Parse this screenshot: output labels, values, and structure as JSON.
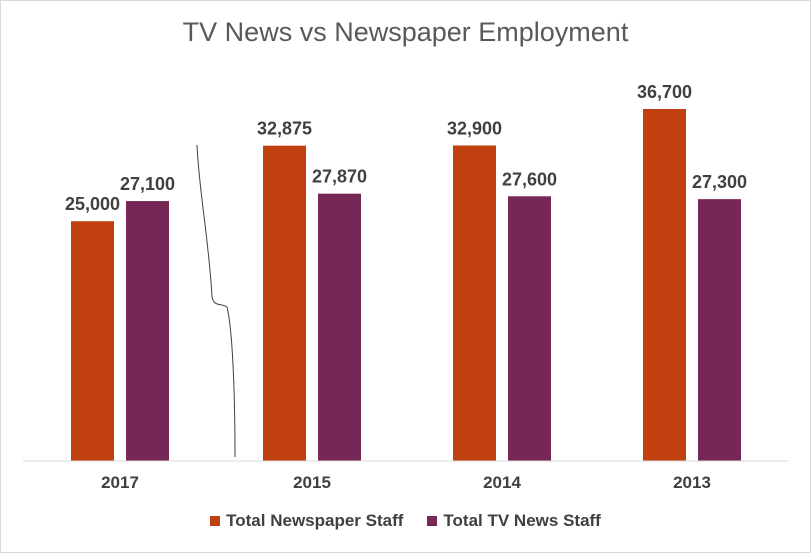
{
  "chart_data": {
    "type": "bar",
    "title": "TV News vs Newspaper Employment",
    "xlabel": "",
    "ylabel": "",
    "categories": [
      "2017",
      "2015",
      "2014",
      "2013"
    ],
    "series": [
      {
        "name": "Total Newspaper Staff",
        "color": "#c0410f",
        "values": [
          25000,
          32875,
          32900,
          36700
        ],
        "labels": [
          "25,000",
          "32,875",
          "32,900",
          "36,700"
        ]
      },
      {
        "name": "Total TV News Staff",
        "color": "#772755",
        "values": [
          27100,
          27870,
          27600,
          27300
        ],
        "labels": [
          "27,100",
          "27,870",
          "27,600",
          "27,300"
        ]
      }
    ],
    "ylim": [
      0,
      40000
    ],
    "axis_break": "between 2017 and 2015",
    "grid": false,
    "legend": "bottom"
  }
}
